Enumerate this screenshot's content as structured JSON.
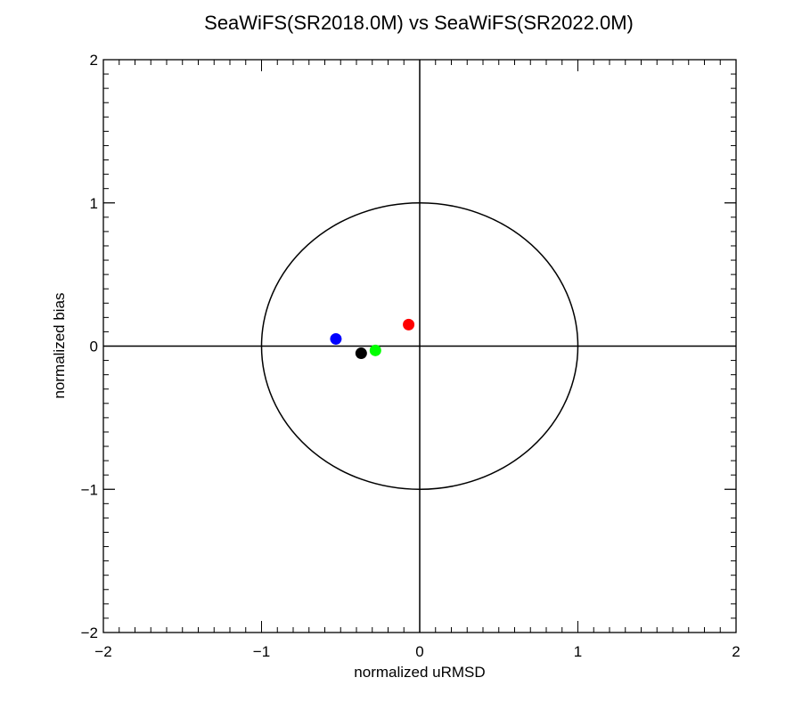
{
  "chart_data": {
    "type": "scatter",
    "title": "SeaWiFS(SR2018.0M) vs SeaWiFS(SR2022.0M)",
    "xlabel": "normalized uRMSD",
    "ylabel": "normalized bias",
    "xlim": [
      -2,
      2
    ],
    "ylim": [
      -2,
      2
    ],
    "xticks": [
      -2,
      -1,
      0,
      1,
      2
    ],
    "yticks": [
      -2,
      -1,
      0,
      1,
      2
    ],
    "xtick_labels": [
      "−2",
      "−1",
      "0",
      "1",
      "2"
    ],
    "ytick_labels": [
      "−2",
      "−1",
      "0",
      "1",
      "2"
    ],
    "minor_ticks_per_major": 10,
    "reference_circle_radius": 1,
    "crosshair": {
      "x": 0,
      "y": 0
    },
    "points": [
      {
        "x": -0.53,
        "y": 0.05,
        "color": "#0000ff"
      },
      {
        "x": -0.37,
        "y": -0.05,
        "color": "#000000"
      },
      {
        "x": -0.28,
        "y": -0.03,
        "color": "#00ff00"
      },
      {
        "x": -0.07,
        "y": 0.15,
        "color": "#ff0000"
      }
    ]
  }
}
